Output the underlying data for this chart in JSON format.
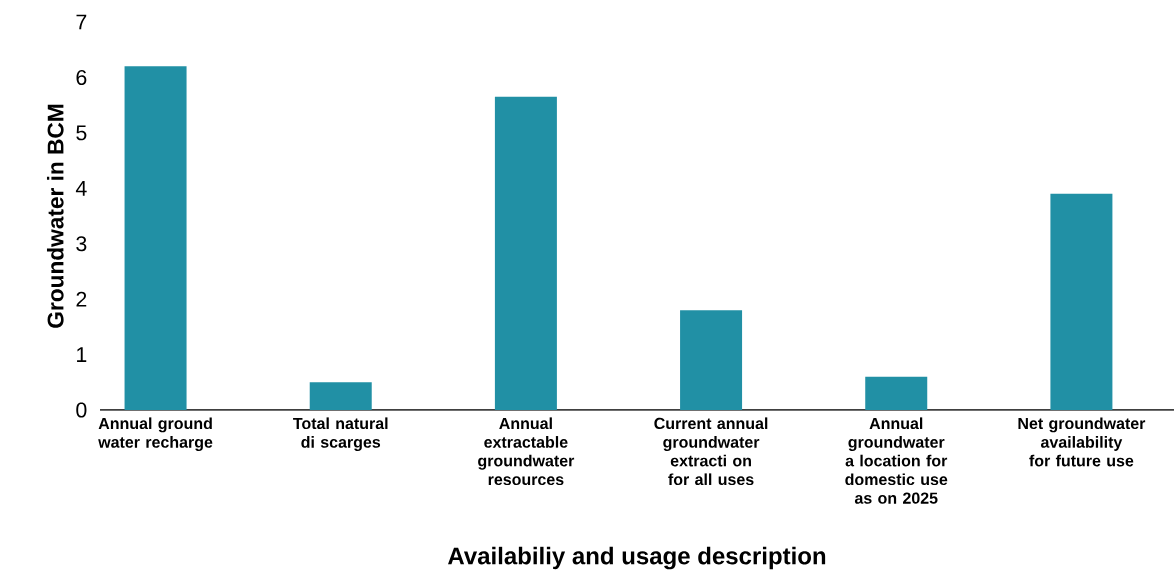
{
  "chart_data": {
    "type": "bar",
    "categories": [
      "Annual ground water recharge",
      "Total natural di scarges",
      "Annual extractable groundwater resources",
      "Current annual groundwater extracti on for all uses",
      "Annual groundwater a location for domestic use as on 2025",
      "Net groundwater availability for future use"
    ],
    "values": [
      6.2,
      0.5,
      5.65,
      1.8,
      0.6,
      3.9
    ],
    "color": "#2190a5",
    "xlabel": "Availabiliy and usage description",
    "ylabel": "Groundwater in BCM",
    "ylim": [
      0,
      7
    ],
    "yticks": [
      0,
      1,
      2,
      3,
      4,
      5,
      6,
      7
    ],
    "grid": false
  }
}
